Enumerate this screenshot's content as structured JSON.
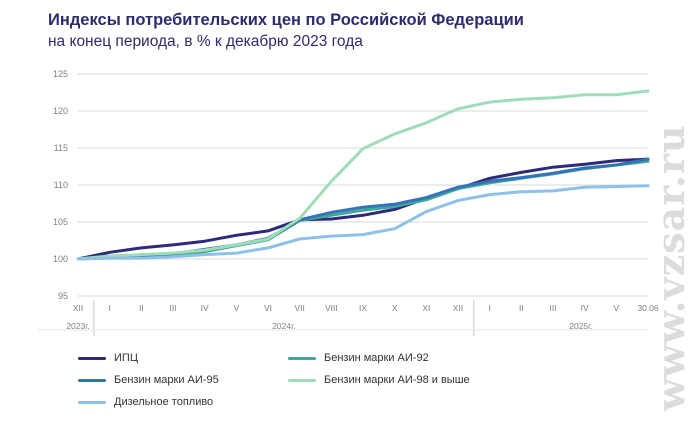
{
  "header": {
    "title": "Индексы потребительских цен по Российской Федерации",
    "subtitle": "на конец периода, в % к декабрю 2023 года"
  },
  "watermark": "www.vzsar.ru",
  "chart_data": {
    "type": "line",
    "title": "Индексы потребительских цен по Российской Федерации",
    "subtitle": "на конец периода, в % к декабрю 2023 года",
    "ylim": [
      95,
      125
    ],
    "yticks": [
      "95",
      "100",
      "105",
      "110",
      "115",
      "120",
      "125"
    ],
    "categories": [
      "XII",
      "I",
      "II",
      "III",
      "IV",
      "V",
      "VI",
      "VII",
      "VIII",
      "IX",
      "X",
      "XI",
      "XII",
      "I",
      "II",
      "III",
      "IV",
      "V",
      "30.06"
    ],
    "year_labels": [
      "2023г.",
      "2024г.",
      "2025г."
    ],
    "grid": true,
    "legend_position": "bottom",
    "series": [
      {
        "name": "ИПЦ",
        "color": "#2e2a7a",
        "values": [
          100.0,
          100.9,
          101.5,
          101.9,
          102.4,
          103.2,
          103.8,
          105.3,
          105.4,
          105.9,
          106.7,
          108.2,
          109.5,
          110.9,
          111.7,
          112.4,
          112.8,
          113.3,
          113.5
        ]
      },
      {
        "name": "Бензин марки АИ-92",
        "color": "#3ea89a",
        "values": [
          100.0,
          100.3,
          100.4,
          100.5,
          101.0,
          101.8,
          102.6,
          105.2,
          105.9,
          106.6,
          107.1,
          108.0,
          109.5,
          110.3,
          110.9,
          111.5,
          112.2,
          112.7,
          113.2
        ]
      },
      {
        "name": "Бензин марки АИ-95",
        "color": "#3473b8",
        "values": [
          100.0,
          100.4,
          100.5,
          100.7,
          101.3,
          101.9,
          102.8,
          105.3,
          106.3,
          107.0,
          107.4,
          108.3,
          109.7,
          110.5,
          111.0,
          111.6,
          112.3,
          112.7,
          113.5
        ]
      },
      {
        "name": "Бензин марки АИ-98 и выше",
        "color": "#9fdcb8",
        "values": [
          100.0,
          100.4,
          100.6,
          100.8,
          101.2,
          101.9,
          102.7,
          105.5,
          110.5,
          114.9,
          116.9,
          118.4,
          120.3,
          121.2,
          121.6,
          121.8,
          122.2,
          122.2,
          122.7
        ]
      },
      {
        "name": "Дизельное топливо",
        "color": "#8ec1ea",
        "values": [
          100.0,
          100.1,
          100.1,
          100.3,
          100.6,
          100.8,
          101.5,
          102.7,
          103.1,
          103.3,
          104.1,
          106.4,
          107.9,
          108.7,
          109.1,
          109.2,
          109.7,
          109.8,
          109.9
        ]
      }
    ]
  }
}
